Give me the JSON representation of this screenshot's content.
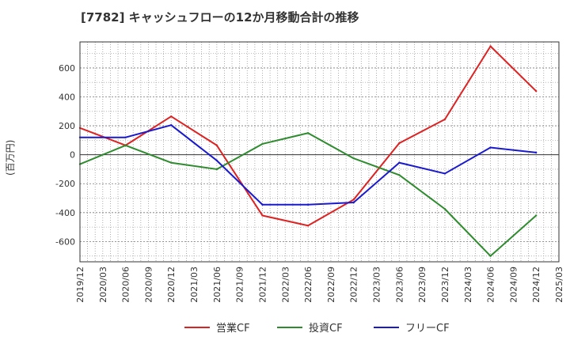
{
  "chart_data": {
    "type": "line",
    "title": "[7782]  キャッシュフローの12か月移動合計の推移",
    "ylabel": "(百万円)",
    "xlabel": "",
    "ylim": [
      -740,
      780
    ],
    "yticks": [
      600,
      400,
      200,
      0,
      -200,
      -400,
      -600
    ],
    "x_categories": [
      "2019/12",
      "2020/03",
      "2020/06",
      "2020/09",
      "2020/12",
      "2021/03",
      "2021/06",
      "2021/09",
      "2021/12",
      "2022/03",
      "2022/06",
      "2022/09",
      "2022/12",
      "2023/03",
      "2023/06",
      "2023/09",
      "2023/12",
      "2024/03",
      "2024/06",
      "2024/09",
      "2024/12",
      "2025/03"
    ],
    "grid": true,
    "legend": "bottom",
    "series": [
      {
        "name": "営業CF",
        "color": "#dd2222",
        "x": [
          "2019/12",
          "2020/06",
          "2020/12",
          "2021/06",
          "2021/12",
          "2022/06",
          "2022/12",
          "2023/06",
          "2023/12",
          "2024/06",
          "2024/12"
        ],
        "values": [
          185,
          65,
          265,
          65,
          -420,
          -490,
          -310,
          80,
          245,
          750,
          440
        ]
      },
      {
        "name": "投資CF",
        "color": "#2e8b2e",
        "x": [
          "2019/12",
          "2020/06",
          "2020/12",
          "2021/06",
          "2021/12",
          "2022/06",
          "2022/12",
          "2023/06",
          "2023/12",
          "2024/06",
          "2024/12"
        ],
        "values": [
          -65,
          65,
          -55,
          -100,
          75,
          150,
          -25,
          -140,
          -375,
          -700,
          -420
        ]
      },
      {
        "name": "フリーCF",
        "color": "#1a1acc",
        "x": [
          "2019/12",
          "2020/06",
          "2020/12",
          "2021/06",
          "2021/12",
          "2022/06",
          "2022/12",
          "2023/06",
          "2023/12",
          "2024/06",
          "2024/12"
        ],
        "values": [
          120,
          120,
          205,
          -40,
          -345,
          -345,
          -330,
          -55,
          -130,
          50,
          15
        ]
      }
    ]
  }
}
